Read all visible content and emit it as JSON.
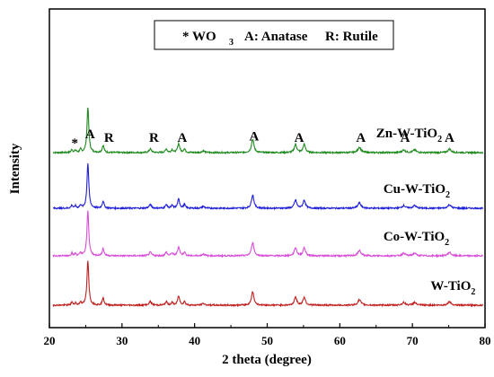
{
  "chart_data": {
    "type": "line",
    "xlabel": "2 theta (degree)",
    "ylabel": "Intensity",
    "xlim": [
      20,
      80
    ],
    "xticks": [
      20,
      30,
      40,
      50,
      60,
      70,
      80
    ],
    "grid": false,
    "legend": {
      "placement": "top-center",
      "wo3": "* WO",
      "wo3_sub": "3",
      "anatase": "A: Anatase",
      "rutile": "R: Rutile"
    },
    "baseline_scale": 100,
    "peaks": [
      {
        "x": 23.1,
        "h": 3.5,
        "w": 0.12
      },
      {
        "x": 23.6,
        "h": 2.5,
        "w": 0.12
      },
      {
        "x": 24.3,
        "h": 3.5,
        "w": 0.12
      },
      {
        "x": 25.3,
        "h": 50,
        "w": 0.15
      },
      {
        "x": 27.4,
        "h": 8,
        "w": 0.15
      },
      {
        "x": 33.9,
        "h": 4,
        "w": 0.2
      },
      {
        "x": 36.1,
        "h": 4,
        "w": 0.15
      },
      {
        "x": 36.9,
        "h": 3,
        "w": 0.15
      },
      {
        "x": 37.8,
        "h": 10,
        "w": 0.17
      },
      {
        "x": 38.6,
        "h": 4,
        "w": 0.15
      },
      {
        "x": 41.2,
        "h": 2,
        "w": 0.2
      },
      {
        "x": 48.0,
        "h": 15,
        "w": 0.2
      },
      {
        "x": 53.9,
        "h": 9,
        "w": 0.2
      },
      {
        "x": 55.1,
        "h": 9,
        "w": 0.2
      },
      {
        "x": 62.7,
        "h": 6,
        "w": 0.25
      },
      {
        "x": 68.8,
        "h": 3,
        "w": 0.25
      },
      {
        "x": 70.3,
        "h": 3,
        "w": 0.25
      },
      {
        "x": 75.1,
        "h": 4,
        "w": 0.25
      }
    ],
    "series": [
      {
        "name": "Zn-W-TiO",
        "sub": "2",
        "color": "#1f8a1f",
        "offset": 170,
        "label_x": 65.0
      },
      {
        "name": "Cu-W-TiO",
        "sub": "2",
        "color": "#2020d8",
        "offset": 108,
        "label_x": 66.0
      },
      {
        "name": "Co-W-TiO",
        "sub": "2",
        "color": "#d84ed8",
        "offset": 55,
        "label_x": 66.0
      },
      {
        "name": "W-TiO",
        "sub": "2",
        "color": "#c02020",
        "offset": 0,
        "label_x": 72.5
      }
    ],
    "annotations": [
      {
        "text": "*",
        "x": 23.5
      },
      {
        "text": "A",
        "x": 25.6
      },
      {
        "text": "R",
        "x": 28.2
      },
      {
        "text": "R",
        "x": 34.4
      },
      {
        "text": "A",
        "x": 38.3
      },
      {
        "text": "A",
        "x": 48.2
      },
      {
        "text": "A",
        "x": 54.4
      },
      {
        "text": "A",
        "x": 62.9
      },
      {
        "text": "A",
        "x": 69.0
      },
      {
        "text": "A",
        "x": 75.1
      }
    ]
  }
}
